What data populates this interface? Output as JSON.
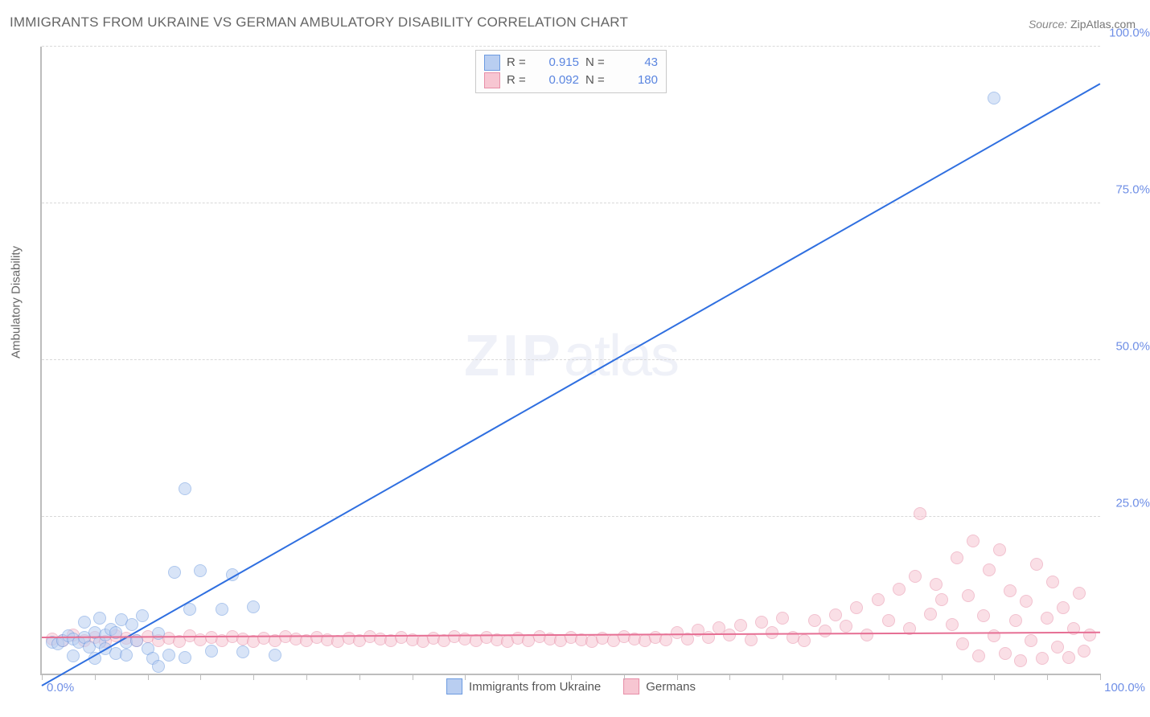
{
  "title": "IMMIGRANTS FROM UKRAINE VS GERMAN AMBULATORY DISABILITY CORRELATION CHART",
  "source_label": "Source:",
  "source_value": "ZipAtlas.com",
  "ylabel": "Ambulatory Disability",
  "watermark_a": "ZIP",
  "watermark_b": "atlas",
  "chart": {
    "type": "scatter",
    "xlim": [
      0,
      100
    ],
    "ylim": [
      0,
      100
    ],
    "background_color": "#ffffff",
    "axis_color": "#bdbdbd",
    "grid_color": "#d9d9d9",
    "grid_dashed": true,
    "tick_label_color": "#6f8fe6",
    "tick_fontsize": 15,
    "yticks": [
      25,
      50,
      75,
      100
    ],
    "ytick_labels": [
      "25.0%",
      "50.0%",
      "75.0%",
      "100.0%"
    ],
    "xtick_positions": [
      0,
      5,
      10,
      15,
      20,
      25,
      30,
      35,
      40,
      45,
      50,
      55,
      60,
      65,
      70,
      75,
      80,
      85,
      90,
      95,
      100
    ],
    "xtick_label_min": "0.0%",
    "xtick_label_max": "100.0%",
    "marker_radius": 8,
    "marker_opacity": 0.55,
    "line_width": 2,
    "series": [
      {
        "name": "Immigrants from Ukraine",
        "key": "ukraine",
        "color_fill": "#b9cef1",
        "color_stroke": "#6d9be0",
        "line_color": "#2f6fe0",
        "R": "0.915",
        "N": "43",
        "fit_line": {
          "x1": 0,
          "y1": -2,
          "x2": 100,
          "y2": 94
        },
        "points": [
          [
            1,
            5
          ],
          [
            1.5,
            4.8
          ],
          [
            2,
            5.2
          ],
          [
            2.5,
            6
          ],
          [
            3,
            5.5
          ],
          [
            3,
            2.8
          ],
          [
            3.5,
            5
          ],
          [
            4,
            5.8
          ],
          [
            4,
            8.2
          ],
          [
            4.5,
            4.2
          ],
          [
            5,
            6.5
          ],
          [
            5,
            2.5
          ],
          [
            5.5,
            5
          ],
          [
            5.5,
            8.8
          ],
          [
            6,
            4
          ],
          [
            6,
            6.2
          ],
          [
            6.5,
            7
          ],
          [
            7,
            3.2
          ],
          [
            7,
            6.6
          ],
          [
            7.5,
            8.6
          ],
          [
            8,
            5
          ],
          [
            8,
            3
          ],
          [
            8.5,
            7.8
          ],
          [
            9,
            5.2
          ],
          [
            9.5,
            9.2
          ],
          [
            10,
            4
          ],
          [
            10.5,
            2.4
          ],
          [
            11,
            6.4
          ],
          [
            11,
            1.2
          ],
          [
            12,
            3
          ],
          [
            12.5,
            16.2
          ],
          [
            13.5,
            2.6
          ],
          [
            14,
            10.2
          ],
          [
            15,
            16.4
          ],
          [
            16,
            3.6
          ],
          [
            17,
            10.2
          ],
          [
            18,
            15.8
          ],
          [
            19,
            3.4
          ],
          [
            20,
            10.6
          ],
          [
            22,
            3
          ],
          [
            13.5,
            29.5
          ],
          [
            90,
            91.8
          ]
        ]
      },
      {
        "name": "Germans",
        "key": "germans",
        "color_fill": "#f7c6d2",
        "color_stroke": "#e78fa8",
        "line_color": "#e66f94",
        "R": "0.092",
        "N": "180",
        "fit_line": {
          "x1": 0,
          "y1": 5.6,
          "x2": 100,
          "y2": 6.4
        },
        "points": [
          [
            1,
            5.5
          ],
          [
            2,
            5.2
          ],
          [
            3,
            6.1
          ],
          [
            4,
            5.3
          ],
          [
            5,
            5.8
          ],
          [
            6,
            5.1
          ],
          [
            7,
            6.0
          ],
          [
            8,
            5.6
          ],
          [
            9,
            5.2
          ],
          [
            10,
            5.9
          ],
          [
            11,
            5.3
          ],
          [
            12,
            5.7
          ],
          [
            13,
            5.1
          ],
          [
            14,
            6.0
          ],
          [
            15,
            5.4
          ],
          [
            16,
            5.8
          ],
          [
            17,
            5.2
          ],
          [
            18,
            5.9
          ],
          [
            19,
            5.5
          ],
          [
            20,
            5.1
          ],
          [
            21,
            5.7
          ],
          [
            22,
            5.3
          ],
          [
            23,
            5.9
          ],
          [
            24,
            5.5
          ],
          [
            25,
            5.2
          ],
          [
            26,
            5.8
          ],
          [
            27,
            5.4
          ],
          [
            28,
            5.1
          ],
          [
            29,
            5.7
          ],
          [
            30,
            5.3
          ],
          [
            31,
            5.9
          ],
          [
            32,
            5.5
          ],
          [
            33,
            5.2
          ],
          [
            34,
            5.8
          ],
          [
            35,
            5.4
          ],
          [
            36,
            5.1
          ],
          [
            37,
            5.7
          ],
          [
            38,
            5.3
          ],
          [
            39,
            5.9
          ],
          [
            40,
            5.5
          ],
          [
            41,
            5.2
          ],
          [
            42,
            5.8
          ],
          [
            43,
            5.4
          ],
          [
            44,
            5.1
          ],
          [
            45,
            5.7
          ],
          [
            46,
            5.3
          ],
          [
            47,
            5.9
          ],
          [
            48,
            5.5
          ],
          [
            49,
            5.2
          ],
          [
            50,
            5.8
          ],
          [
            51,
            5.4
          ],
          [
            52,
            5.1
          ],
          [
            53,
            5.7
          ],
          [
            54,
            5.3
          ],
          [
            55,
            5.9
          ],
          [
            56,
            5.5
          ],
          [
            57,
            5.2
          ],
          [
            58,
            5.8
          ],
          [
            59,
            5.4
          ],
          [
            60,
            6.6
          ],
          [
            61,
            5.5
          ],
          [
            62,
            6.9
          ],
          [
            63,
            5.8
          ],
          [
            64,
            7.3
          ],
          [
            65,
            6.1
          ],
          [
            66,
            7.7
          ],
          [
            67,
            5.4
          ],
          [
            68,
            8.2
          ],
          [
            69,
            6.6
          ],
          [
            70,
            8.9
          ],
          [
            71,
            5.8
          ],
          [
            72,
            5.2
          ],
          [
            73,
            8.5
          ],
          [
            74,
            6.8
          ],
          [
            75,
            9.4
          ],
          [
            76,
            7.6
          ],
          [
            77,
            10.5
          ],
          [
            78,
            6.2
          ],
          [
            79,
            11.8
          ],
          [
            80,
            8.5
          ],
          [
            81,
            13.5
          ],
          [
            82,
            7.2
          ],
          [
            82.5,
            15.5
          ],
          [
            83,
            25.5
          ],
          [
            84,
            9.5
          ],
          [
            84.5,
            14.2
          ],
          [
            85,
            11.8
          ],
          [
            86,
            7.8
          ],
          [
            86.5,
            18.5
          ],
          [
            87,
            4.8
          ],
          [
            87.5,
            12.4
          ],
          [
            88,
            21.2
          ],
          [
            88.5,
            2.8
          ],
          [
            89,
            9.2
          ],
          [
            89.5,
            16.5
          ],
          [
            90,
            6.0
          ],
          [
            90.5,
            19.8
          ],
          [
            91,
            3.2
          ],
          [
            91.5,
            13.2
          ],
          [
            92,
            8.4
          ],
          [
            92.5,
            2.0
          ],
          [
            93,
            11.6
          ],
          [
            93.5,
            5.2
          ],
          [
            94,
            17.4
          ],
          [
            94.5,
            2.4
          ],
          [
            95,
            8.8
          ],
          [
            95.5,
            14.6
          ],
          [
            96,
            4.2
          ],
          [
            96.5,
            10.5
          ],
          [
            97,
            2.6
          ],
          [
            97.5,
            7.2
          ],
          [
            98,
            12.8
          ],
          [
            98.5,
            3.6
          ],
          [
            99,
            6.2
          ]
        ]
      }
    ],
    "legend_bottom": [
      {
        "series": 0
      },
      {
        "series": 1
      }
    ]
  }
}
